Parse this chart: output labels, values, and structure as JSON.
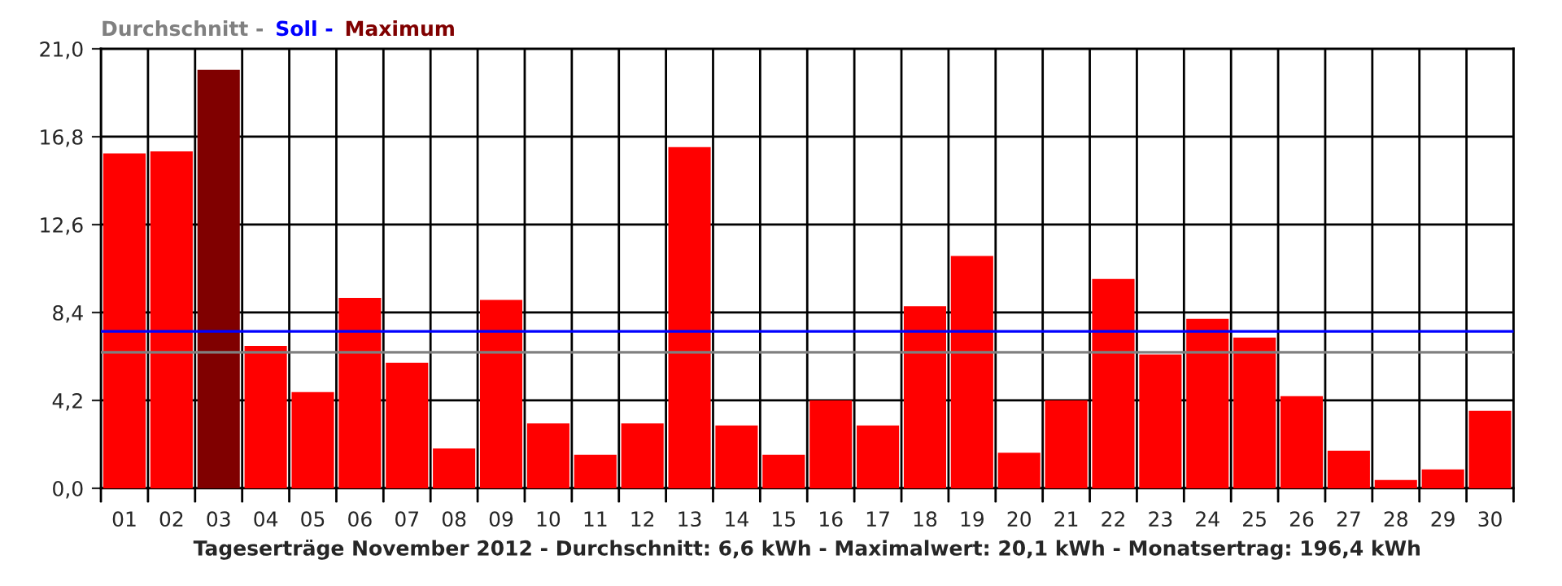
{
  "chart_data": {
    "type": "bar",
    "xlabel": "Tageserträge November 2012 - Durchschnitt: 6,6 kWh - Maximalwert: 20,1 kWh - Monatsertrag: 196,4 kWh",
    "categories": [
      "01",
      "02",
      "03",
      "04",
      "05",
      "06",
      "07",
      "08",
      "09",
      "10",
      "11",
      "12",
      "13",
      "14",
      "15",
      "16",
      "17",
      "18",
      "19",
      "20",
      "21",
      "22",
      "23",
      "24",
      "25",
      "26",
      "27",
      "28",
      "29",
      "30"
    ],
    "series": [
      {
        "color": "#ff0000",
        "values": [
          16.0,
          16.1,
          null,
          6.8,
          4.6,
          9.1,
          6.0,
          1.9,
          9.0,
          3.1,
          1.6,
          3.1,
          16.3,
          3.0,
          1.6,
          4.2,
          3.0,
          8.7,
          11.1,
          1.7,
          4.2,
          10.0,
          6.4,
          8.1,
          7.2,
          4.4,
          1.8,
          0.4,
          0.9,
          3.7
        ]
      },
      {
        "name": "Maximum",
        "color": "#800000",
        "values": [
          null,
          null,
          20.0,
          null,
          null,
          null,
          null,
          null,
          null,
          null,
          null,
          null,
          null,
          null,
          null,
          null,
          null,
          null,
          null,
          null,
          null,
          null,
          null,
          null,
          null,
          null,
          null,
          null,
          null,
          null
        ]
      }
    ],
    "ref_lines": [
      {
        "axis": "y",
        "value": 6.5,
        "label": "Durchschnitt -",
        "color": "#808080"
      },
      {
        "axis": "y",
        "value": 7.5,
        "label": "Soll -",
        "color": "#0000ff"
      }
    ],
    "ylim": [
      0,
      21
    ],
    "yticks": [
      {
        "value": 0,
        "label": "0,0"
      },
      {
        "value": 4.2,
        "label": "4,2"
      },
      {
        "value": 8.4,
        "label": "8,4"
      },
      {
        "value": 12.6,
        "label": "12,6"
      },
      {
        "value": 16.8,
        "label": "16,8"
      },
      {
        "value": 21,
        "label": "21,0"
      }
    ],
    "grid": true,
    "legend": "top left"
  }
}
